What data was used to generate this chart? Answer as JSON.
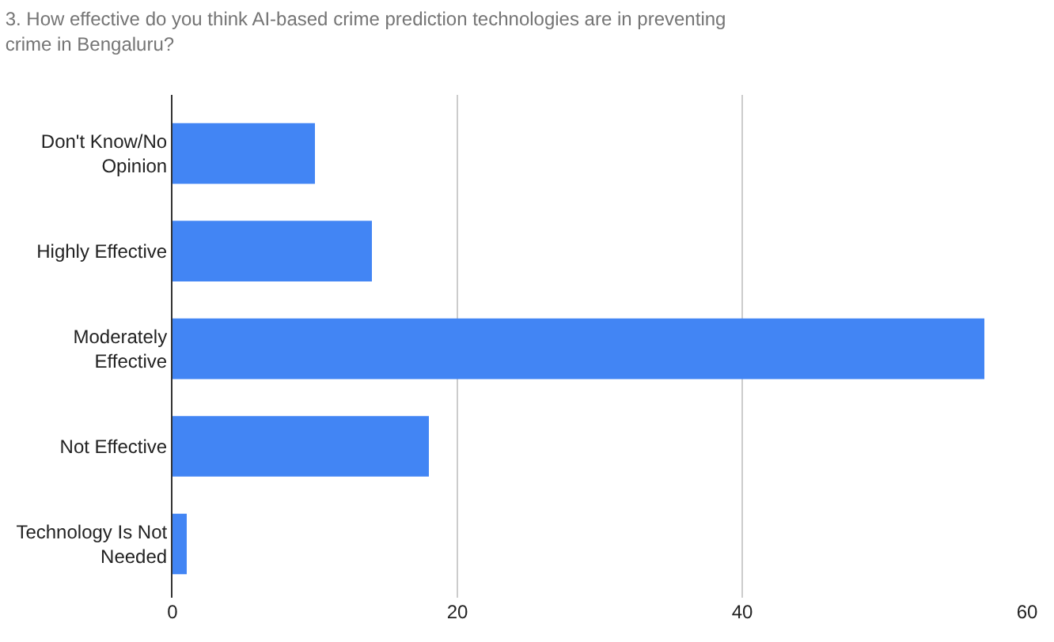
{
  "chart_data": {
    "type": "bar",
    "orientation": "horizontal",
    "title": "3. How effective do you think AI-based crime prediction technologies are in preventing crime in Bengaluru?",
    "categories": [
      "Don't Know/No Opinion",
      "Highly Effective",
      "Moderately Effective",
      "Not Effective",
      "Technology Is Not Needed"
    ],
    "values": [
      10,
      14,
      57,
      18,
      1
    ],
    "color": "#4285f4",
    "xlim": [
      0,
      60
    ],
    "xticks": [
      0,
      20,
      40,
      60
    ],
    "grid": "x"
  }
}
